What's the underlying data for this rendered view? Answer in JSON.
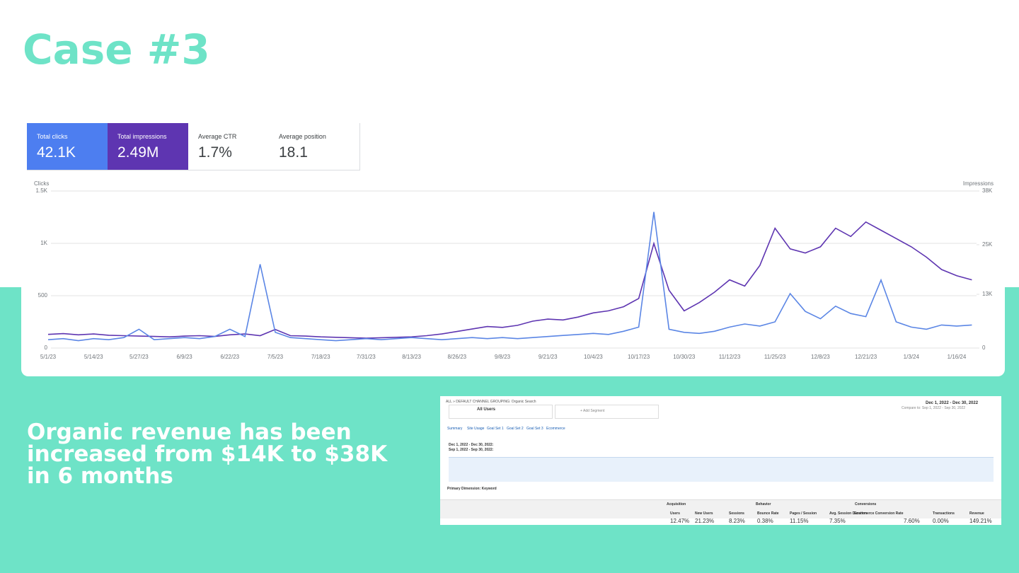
{
  "header": {
    "title": "Case #3"
  },
  "metrics": [
    {
      "label": "Total clicks",
      "value": "42.1K"
    },
    {
      "label": "Total impressions",
      "value": "2.49M"
    },
    {
      "label": "Average CTR",
      "value": "1.7%"
    },
    {
      "label": "Average position",
      "value": "18.1"
    }
  ],
  "chart_data": {
    "type": "line",
    "y_label": "Clicks",
    "y2_label": "Impressions",
    "categories": [
      "5/1/23",
      null,
      null,
      "5/14/23",
      null,
      null,
      "5/27/23",
      null,
      null,
      "6/9/23",
      null,
      null,
      "6/22/23",
      null,
      null,
      "7/5/23",
      null,
      null,
      "7/18/23",
      null,
      null,
      "7/31/23",
      null,
      null,
      "8/13/23",
      null,
      null,
      "8/26/23",
      null,
      null,
      "9/8/23",
      null,
      null,
      "9/21/23",
      null,
      null,
      "10/4/23",
      null,
      null,
      "10/17/23",
      null,
      null,
      "10/30/23",
      null,
      null,
      "11/12/23",
      null,
      null,
      "11/25/23",
      null,
      null,
      "12/8/23",
      null,
      null,
      "12/21/23",
      null,
      null,
      "1/3/24",
      null,
      null,
      "1/16/24",
      null
    ],
    "ylim": [
      0,
      1500
    ],
    "yticks": [
      0,
      500,
      {
        "value": 1000,
        "label": "1K"
      },
      {
        "value": 1500,
        "label": "1.5K"
      }
    ],
    "y2lim": [
      0,
      38000
    ],
    "y2ticks": [
      0,
      {
        "value": 13000,
        "label": "13K"
      },
      {
        "value": 25000,
        "label": "25K"
      },
      {
        "value": 38000,
        "label": "38K"
      }
    ],
    "grid": true,
    "series": [
      {
        "name": "Total clicks",
        "color": "#5b86e5",
        "values": [
          80,
          90,
          70,
          90,
          80,
          100,
          180,
          80,
          90,
          100,
          90,
          110,
          180,
          110,
          800,
          150,
          100,
          90,
          80,
          70,
          80,
          90,
          80,
          90,
          100,
          90,
          80,
          90,
          100,
          90,
          100,
          90,
          100,
          110,
          120,
          130,
          140,
          130,
          160,
          200,
          1300,
          180,
          150,
          140,
          160,
          200,
          230,
          210,
          250,
          520,
          350,
          280,
          400,
          330,
          300,
          650,
          250,
          200,
          180,
          220,
          210,
          220
        ]
      },
      {
        "name": "Total impressions",
        "color": "#5e35b1",
        "axis": "y2",
        "values": [
          3300,
          3500,
          3200,
          3400,
          3100,
          3000,
          2900,
          2800,
          2700,
          2900,
          3000,
          2800,
          3200,
          3400,
          3000,
          4500,
          3000,
          2900,
          2700,
          2600,
          2500,
          2400,
          2500,
          2600,
          2700,
          3000,
          3400,
          4000,
          4600,
          5200,
          5000,
          5500,
          6500,
          7000,
          6800,
          7500,
          8500,
          9000,
          10000,
          12000,
          25300,
          14000,
          9000,
          11000,
          13500,
          16500,
          15000,
          20000,
          29000,
          24000,
          23000,
          24500,
          29000,
          27000,
          30500,
          28500,
          26500,
          24500,
          22000,
          19000,
          17500,
          16500
        ]
      }
    ]
  },
  "body": {
    "text": "Organic revenue has been increased from $14K to $38K in 6 months"
  },
  "screenshot": {
    "breadcrumb": "ALL » DEFAULT CHANNEL GROUPING: Organic Search",
    "segment": "All Users",
    "add_segment": "+ Add Segment",
    "date_range": "Dec 1, 2022 - Dec 30, 2022",
    "compare": "Compare to: Sep 1, 2022 - Sep 30, 2022",
    "tabs": [
      "Summary",
      "Site Usage",
      "Goal Set 1",
      "Goal Set 2",
      "Goal Set 3",
      "Ecommerce"
    ],
    "legend": [
      "Dec 1, 2022 - Dec 30, 2022:",
      "Sep 1, 2022 - Sep 30, 2022:"
    ],
    "primary_dimension": "Primary Dimension: Keyword",
    "groups": [
      "Acquisition",
      "Behavior",
      "Conversions"
    ],
    "columns": [
      "Users",
      "New Users",
      "Sessions",
      "Bounce Rate",
      "Pages / Session",
      "Avg. Session Duration",
      "Ecommerce Conversion Rate",
      "Transactions",
      "Revenue"
    ],
    "totals": [
      "12.47%",
      "21.23%",
      "8.23%",
      "0.38%",
      "11.15%",
      "7.35%",
      "7.60%",
      "0.00%",
      "149.21%"
    ]
  }
}
